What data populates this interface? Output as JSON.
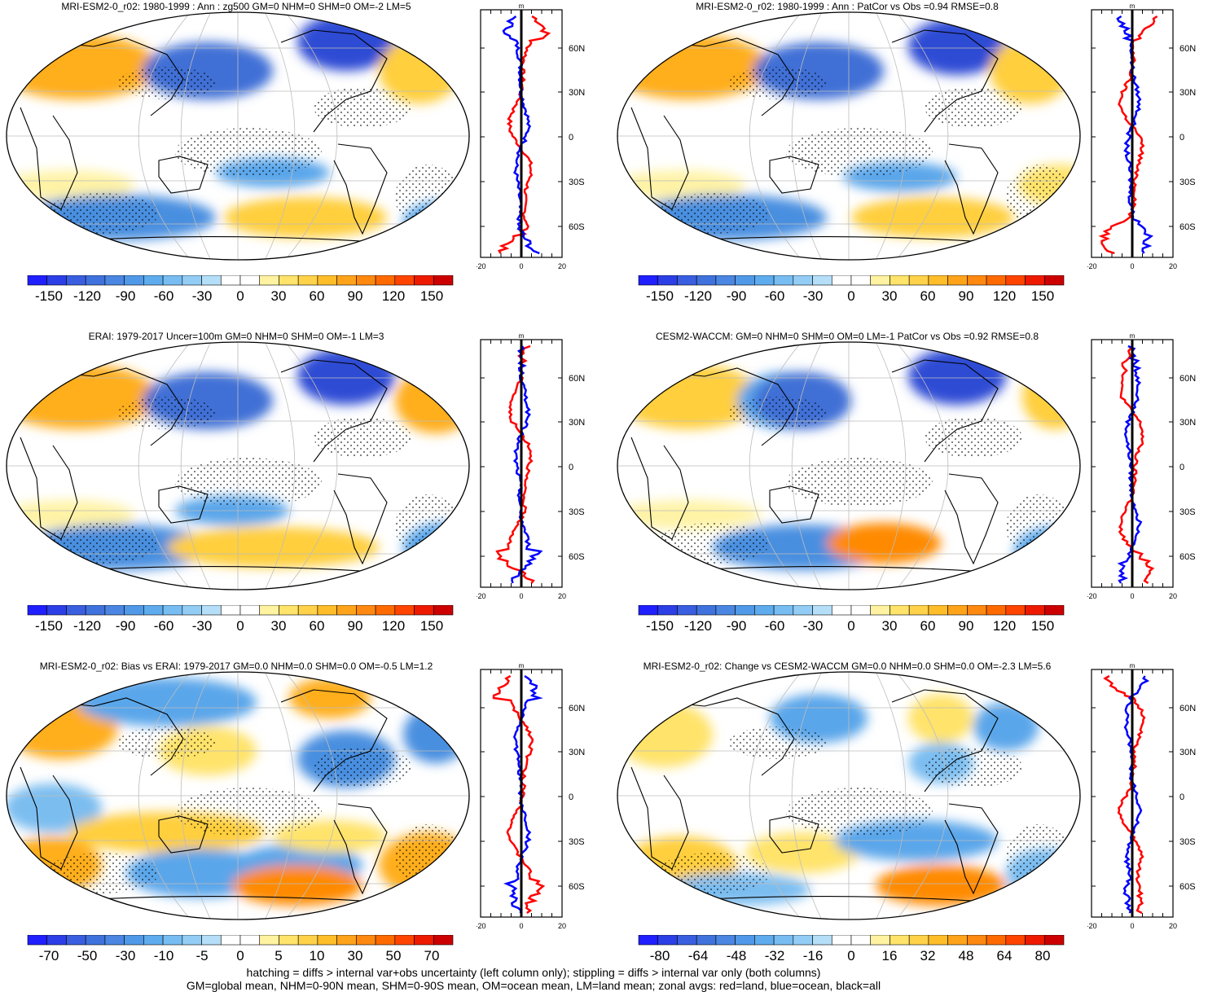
{
  "footer": {
    "line1": "hatching = diffs > internal var+obs uncertainty (left column only); stippling = diffs > internal var only (both columns)",
    "line2": "GM=global mean, NHM=0-90N mean, SHM=0-90S mean, OM=ocean mean, LM=land mean; zonal avgs: red=land, blue=ocean, black=all"
  },
  "colors": {
    "blue_scale": [
      "#1a1aff",
      "#2e4bd4",
      "#3f6fd6",
      "#4a8fe0",
      "#5aa6ea",
      "#7cbdf0",
      "#a7d3f2"
    ],
    "red_scale": [
      "#fff3a6",
      "#ffe36a",
      "#ffcf3c",
      "#ffae1a",
      "#ff8a00",
      "#ff5a00",
      "#ff2a00",
      "#dd0000"
    ],
    "land_line": "#ff0000",
    "ocean_line": "#0000ff",
    "all_line": "#000000"
  },
  "chart_data": [
    {
      "type": "heatmap",
      "title": "MRI-ESM2-0_r02: 1980-1999 : Ann : zg500 GM=0 NHM=0 SHM=0 OM=-2 LM=5",
      "colorbar_ticks": [
        "-150",
        "-120",
        "-90",
        "-60",
        "-30",
        "0",
        "30",
        "60",
        "90",
        "120",
        "150"
      ],
      "zonal": {
        "xlim": [
          -20,
          20
        ],
        "xticks": [
          "-20",
          "0",
          "20"
        ],
        "ylabels": [
          "60N",
          "30N",
          "0",
          "30S",
          "60S"
        ],
        "unit": "m"
      }
    },
    {
      "type": "heatmap",
      "title": "MRI-ESM2-0_r02: 1980-1999 : Ann : PatCor vs Obs =0.94 RMSE=0.8",
      "colorbar_ticks": [
        "-150",
        "-120",
        "-90",
        "-60",
        "-30",
        "0",
        "30",
        "60",
        "90",
        "120",
        "150"
      ],
      "zonal": {
        "xlim": [
          -20,
          20
        ],
        "xticks": [
          "-20",
          "0",
          "20"
        ],
        "ylabels": [
          "60N",
          "30N",
          "0",
          "30S",
          "60S"
        ],
        "unit": "m"
      }
    },
    {
      "type": "heatmap",
      "title": "ERAI: 1979-2017 Uncer=100m GM=0 NHM=0 SHM=0 OM=-1 LM=3",
      "colorbar_ticks": [
        "-150",
        "-120",
        "-90",
        "-60",
        "-30",
        "0",
        "30",
        "60",
        "90",
        "120",
        "150"
      ],
      "zonal": {
        "xlim": [
          -20,
          20
        ],
        "xticks": [
          "-20",
          "0",
          "20"
        ],
        "ylabels": [
          "60N",
          "30N",
          "0",
          "30S",
          "60S"
        ],
        "unit": "m"
      }
    },
    {
      "type": "heatmap",
      "title": "CESM2-WACCM: GM=0 NHM=0 SHM=0 OM=0 LM=-1 PatCor vs Obs =0.92 RMSE=0.8",
      "colorbar_ticks": [
        "-150",
        "-120",
        "-90",
        "-60",
        "-30",
        "0",
        "30",
        "60",
        "90",
        "120",
        "150"
      ],
      "zonal": {
        "xlim": [
          -20,
          20
        ],
        "xticks": [
          "-20",
          "0",
          "20"
        ],
        "ylabels": [
          "60N",
          "30N",
          "0",
          "30S",
          "60S"
        ],
        "unit": "m"
      }
    },
    {
      "type": "heatmap",
      "title": "MRI-ESM2-0_r02: Bias vs ERAI: 1979-2017 GM=0.0 NHM=0.0 SHM=0.0 OM=-0.5 LM=1.2",
      "colorbar_ticks": [
        "-70",
        "-50",
        "-30",
        "-10",
        "-5",
        "0",
        "5",
        "10",
        "30",
        "50",
        "70"
      ],
      "zonal": {
        "xlim": [
          -20,
          20
        ],
        "xticks": [
          "-20",
          "0",
          "20"
        ],
        "ylabels": [
          "60N",
          "30N",
          "0",
          "30S",
          "60S"
        ],
        "unit": "m"
      }
    },
    {
      "type": "heatmap",
      "title": "MRI-ESM2-0_r02: Change vs CESM2-WACCM GM=0.0 NHM=0.0 SHM=0.0 OM=-2.3 LM=5.6",
      "colorbar_ticks": [
        "-80",
        "-64",
        "-48",
        "-32",
        "-16",
        "0",
        "16",
        "32",
        "48",
        "64",
        "80"
      ],
      "zonal": {
        "xlim": [
          -20,
          20
        ],
        "xticks": [
          "-20",
          "0",
          "20"
        ],
        "ylabels": [
          "60N",
          "30N",
          "0",
          "30S",
          "60S"
        ],
        "unit": "m"
      }
    }
  ]
}
